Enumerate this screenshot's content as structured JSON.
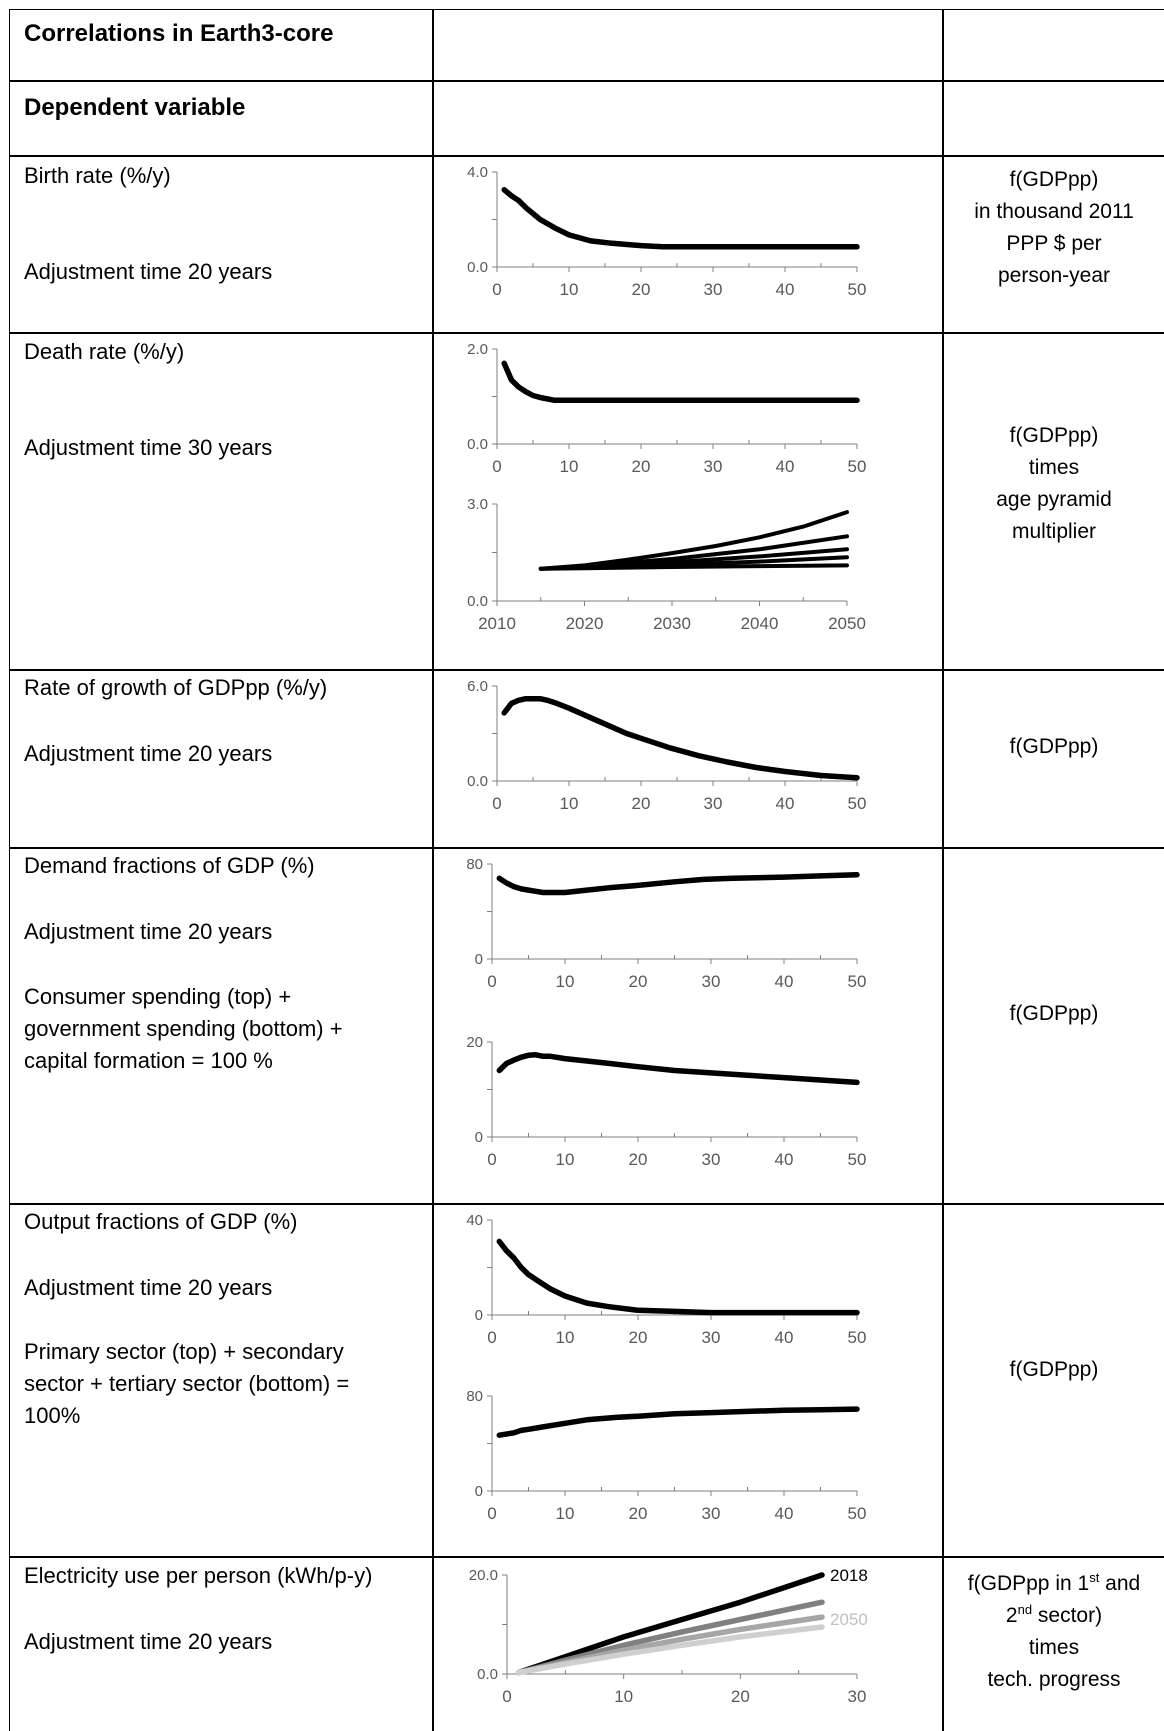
{
  "header": {
    "title": "Correlations in Earth3-core",
    "dependent_variable": "Dependent variable"
  },
  "rows": [
    {
      "label": "Birth rate (%/y)",
      "adjust": "Adjustment time 20 years",
      "right": [
        "f(GDPpp)",
        "in thousand 2011",
        "PPP $ per",
        "person-year"
      ]
    },
    {
      "label": "Death rate (%/y)",
      "adjust": "Adjustment time 30 years",
      "right": [
        "f(GDPpp)",
        "times",
        "age pyramid",
        "multiplier"
      ]
    },
    {
      "label": "Rate of growth of GDPpp (%/y)",
      "adjust": "Adjustment time 20 years",
      "right": [
        "f(GDPpp)"
      ]
    },
    {
      "label": "Demand fractions of GDP (%)",
      "adjust": "Adjustment time 20 years",
      "note": [
        "Consumer spending (top) +",
        "government spending (bottom) +",
        "capital formation = 100 %"
      ],
      "right": [
        "f(GDPpp)"
      ]
    },
    {
      "label": "Output fractions of GDP (%)",
      "adjust": "Adjustment time 20 years",
      "note": [
        "Primary sector (top) + secondary",
        "sector + tertiary sector (bottom) =",
        "100%"
      ],
      "right": [
        "f(GDPpp)"
      ]
    },
    {
      "label": "Electricity use per person (kWh/p-y)",
      "adjust": "Adjustment time 20 years",
      "right_parts": {
        "l1a": "f(GDPpp in 1",
        "l1sup": "st",
        "l1b": " and",
        "l2sup": "nd",
        "l2b": " sector)",
        "l3": "times",
        "l4": "tech. progress"
      }
    }
  ],
  "chart_data": [
    {
      "id": "birth",
      "type": "line",
      "yticks": [
        "0.0",
        "4.0"
      ],
      "ylim": [
        0,
        4
      ],
      "xlim": [
        0,
        50
      ],
      "xticks": [
        "0",
        "10",
        "20",
        "30",
        "40",
        "50"
      ],
      "series": [
        {
          "color": "#000000",
          "x": [
            1,
            2,
            3,
            4,
            6,
            8,
            10,
            13,
            16,
            20,
            23,
            30,
            40,
            50
          ],
          "y": [
            3.25,
            3.0,
            2.8,
            2.5,
            2.0,
            1.65,
            1.35,
            1.1,
            1.0,
            0.9,
            0.85,
            0.85,
            0.85,
            0.85
          ]
        }
      ]
    },
    {
      "id": "death",
      "type": "line",
      "yticks": [
        "0.0",
        "2.0"
      ],
      "ylim": [
        0,
        2
      ],
      "xlim": [
        0,
        50
      ],
      "xticks": [
        "0",
        "10",
        "20",
        "30",
        "40",
        "50"
      ],
      "series": [
        {
          "color": "#000000",
          "x": [
            1,
            2,
            3,
            4,
            5,
            6,
            8,
            10,
            20,
            30,
            40,
            50
          ],
          "y": [
            1.7,
            1.35,
            1.2,
            1.1,
            1.02,
            0.98,
            0.92,
            0.92,
            0.92,
            0.92,
            0.92,
            0.92
          ]
        }
      ]
    },
    {
      "id": "age-pyramid",
      "type": "line",
      "yticks": [
        "0.0",
        "3.0"
      ],
      "ylim": [
        0,
        3
      ],
      "xlim": [
        2010,
        2050
      ],
      "xticks": [
        "2010",
        "2020",
        "2030",
        "2040",
        "2050"
      ],
      "series": [
        {
          "color": "#000000",
          "x": [
            2015,
            2020,
            2025,
            2030,
            2035,
            2040,
            2045,
            2050
          ],
          "y": [
            1.0,
            1.1,
            1.28,
            1.48,
            1.7,
            1.97,
            2.3,
            2.75
          ]
        },
        {
          "color": "#000000",
          "x": [
            2015,
            2020,
            2030,
            2040,
            2050
          ],
          "y": [
            1.0,
            1.08,
            1.3,
            1.6,
            2.0
          ]
        },
        {
          "color": "#000000",
          "x": [
            2015,
            2020,
            2030,
            2040,
            2050
          ],
          "y": [
            1.0,
            1.05,
            1.2,
            1.38,
            1.6
          ]
        },
        {
          "color": "#000000",
          "x": [
            2015,
            2020,
            2030,
            2040,
            2050
          ],
          "y": [
            1.0,
            1.03,
            1.12,
            1.22,
            1.35
          ]
        },
        {
          "color": "#000000",
          "x": [
            2015,
            2020,
            2030,
            2040,
            2050
          ],
          "y": [
            1.0,
            1.01,
            1.05,
            1.08,
            1.1
          ]
        }
      ]
    },
    {
      "id": "gdp-growth",
      "type": "line",
      "yticks": [
        "0.0",
        "6.0"
      ],
      "ylim": [
        0,
        6
      ],
      "xlim": [
        0,
        50
      ],
      "xticks": [
        "0",
        "10",
        "20",
        "30",
        "40",
        "50"
      ],
      "series": [
        {
          "color": "#000000",
          "x": [
            1,
            2,
            3,
            4,
            5,
            6,
            7,
            8,
            10,
            13,
            16,
            18,
            20,
            24,
            28,
            32,
            36,
            40,
            45,
            50
          ],
          "y": [
            4.3,
            4.9,
            5.1,
            5.2,
            5.2,
            5.2,
            5.1,
            4.95,
            4.6,
            4.0,
            3.4,
            3.0,
            2.7,
            2.1,
            1.6,
            1.2,
            0.85,
            0.6,
            0.35,
            0.2
          ]
        }
      ]
    },
    {
      "id": "consumer",
      "type": "line",
      "yticks": [
        "0",
        "80"
      ],
      "ylim": [
        0,
        80
      ],
      "xlim": [
        0,
        50
      ],
      "xticks": [
        "0",
        "10",
        "20",
        "30",
        "40",
        "50"
      ],
      "series": [
        {
          "color": "#000000",
          "x": [
            1,
            2,
            3,
            4,
            5,
            6,
            7,
            8,
            10,
            13,
            16,
            20,
            25,
            29,
            33,
            40,
            45,
            50
          ],
          "y": [
            68,
            64,
            61,
            59,
            58,
            57,
            56,
            56,
            56,
            58,
            60,
            62,
            65,
            67,
            68,
            69,
            70,
            71
          ]
        }
      ]
    },
    {
      "id": "government",
      "type": "line",
      "yticks": [
        "0",
        "20"
      ],
      "ylim": [
        0,
        20
      ],
      "xlim": [
        0,
        50
      ],
      "xticks": [
        "0",
        "10",
        "20",
        "30",
        "40",
        "50"
      ],
      "series": [
        {
          "color": "#000000",
          "x": [
            1,
            2,
            3,
            4,
            5,
            6,
            7,
            8,
            10,
            13,
            16,
            20,
            25,
            30,
            35,
            40,
            45,
            50
          ],
          "y": [
            14,
            15.5,
            16.2,
            16.8,
            17.2,
            17.3,
            17,
            17,
            16.5,
            16,
            15.5,
            14.8,
            14,
            13.5,
            13,
            12.5,
            12,
            11.5
          ]
        }
      ]
    },
    {
      "id": "primary",
      "type": "line",
      "yticks": [
        "0",
        "40"
      ],
      "ylim": [
        0,
        40
      ],
      "xlim": [
        0,
        50
      ],
      "xticks": [
        "0",
        "10",
        "20",
        "30",
        "40",
        "50"
      ],
      "series": [
        {
          "color": "#000000",
          "x": [
            1,
            2,
            3,
            4,
            5,
            6,
            8,
            10,
            13,
            16,
            20,
            25,
            30,
            40,
            50
          ],
          "y": [
            31,
            27,
            24,
            20,
            17,
            15,
            11,
            8,
            5,
            3.5,
            2,
            1.5,
            1,
            1,
            1
          ]
        }
      ]
    },
    {
      "id": "tertiary",
      "type": "line",
      "yticks": [
        "0",
        "80"
      ],
      "ylim": [
        0,
        80
      ],
      "xlim": [
        0,
        50
      ],
      "xticks": [
        "0",
        "10",
        "20",
        "30",
        "40",
        "50"
      ],
      "series": [
        {
          "color": "#000000",
          "x": [
            1,
            3,
            4,
            5,
            7,
            10,
            13,
            17,
            20,
            25,
            30,
            35,
            40,
            45,
            50
          ],
          "y": [
            47,
            49,
            51,
            52,
            54,
            57,
            60,
            62,
            63,
            65,
            66,
            67,
            68,
            68.5,
            69
          ]
        }
      ]
    },
    {
      "id": "electricity",
      "type": "line",
      "yticks": [
        "0.0",
        "20.0"
      ],
      "ylim": [
        0,
        20
      ],
      "xlim": [
        0,
        30
      ],
      "xticks": [
        "0",
        "10",
        "20",
        "30"
      ],
      "labels": [
        {
          "text": "2018",
          "color": "#000000"
        },
        {
          "text": "2050",
          "color": "#bfbfbf"
        }
      ],
      "series": [
        {
          "name": "2018",
          "color": "#000000",
          "x": [
            1,
            5,
            10,
            15,
            20,
            27
          ],
          "y": [
            0.3,
            3.5,
            7.5,
            11,
            14.5,
            20
          ]
        },
        {
          "color": "#808080",
          "x": [
            1,
            5,
            10,
            15,
            20,
            27
          ],
          "y": [
            0.3,
            2.8,
            5.8,
            8.5,
            11,
            14.5
          ]
        },
        {
          "color": "#a6a6a6",
          "x": [
            1,
            5,
            10,
            15,
            20,
            27
          ],
          "y": [
            0.3,
            2.3,
            4.8,
            7,
            9,
            11.5
          ]
        },
        {
          "name": "2050",
          "color": "#cfcfcf",
          "x": [
            1,
            5,
            10,
            15,
            20,
            27
          ],
          "y": [
            0.3,
            2.0,
            4.0,
            5.8,
            7.5,
            9.5
          ]
        }
      ]
    }
  ]
}
